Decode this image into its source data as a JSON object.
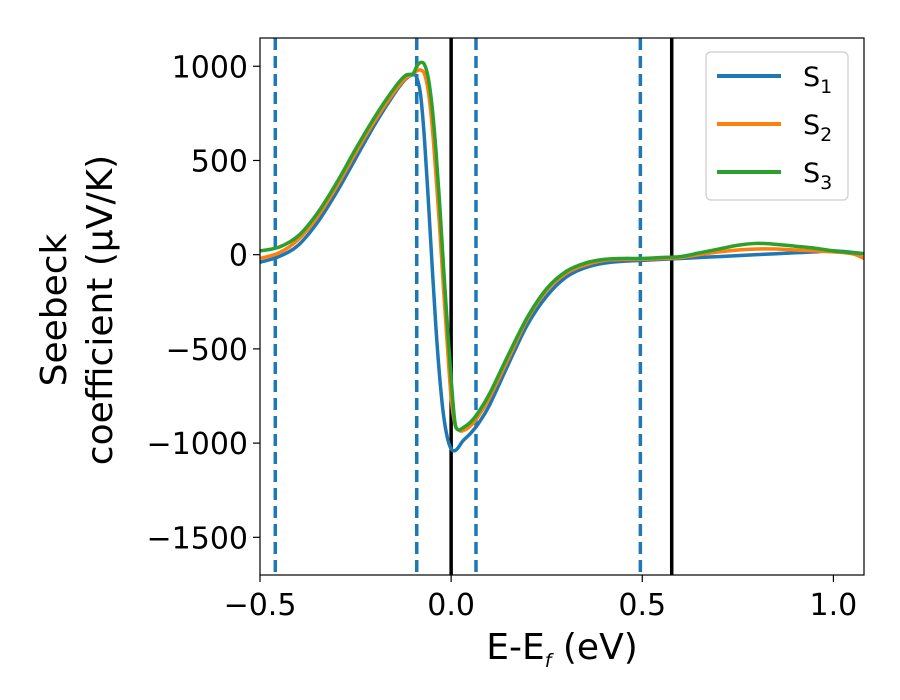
{
  "chart_data": {
    "type": "line",
    "xlabel_prefix": "E-E",
    "xlabel_sub": "f",
    "xlabel_suffix": " (eV)",
    "ylabel_line1": "Seebeck",
    "ylabel_line2": "coefficient  (μV/K)",
    "xlim": [
      -0.5,
      1.08
    ],
    "ylim": [
      -1700,
      1150
    ],
    "xticks": [
      -0.5,
      0.0,
      0.5,
      1.0
    ],
    "xtick_labels": [
      "−0.5",
      "0.0",
      "0.5",
      "1.0"
    ],
    "yticks": [
      1000,
      500,
      0,
      -500,
      -1000,
      -1500
    ],
    "ytick_labels": [
      "1000",
      "500",
      "0",
      "−500",
      "−1000",
      "−1500"
    ],
    "grid": false,
    "legend_position": "top-right",
    "vlines_dashed": {
      "color": "#1f77b4",
      "x": [
        -0.46,
        -0.09,
        0.065,
        0.495
      ]
    },
    "vlines_solid": {
      "color": "#000000",
      "x": [
        0.0,
        0.577
      ]
    },
    "series": [
      {
        "name": "S",
        "name_sub": "1",
        "color": "#1f77b4",
        "x": [
          -0.5,
          -0.45,
          -0.4,
          -0.35,
          -0.3,
          -0.25,
          -0.2,
          -0.15,
          -0.12,
          -0.1,
          -0.09,
          -0.08,
          -0.07,
          -0.06,
          -0.05,
          -0.04,
          -0.03,
          -0.02,
          -0.01,
          0.0,
          0.01,
          0.02,
          0.03,
          0.05,
          0.07,
          0.1,
          0.15,
          0.2,
          0.25,
          0.3,
          0.35,
          0.4,
          0.45,
          0.5,
          0.55,
          0.6,
          0.65,
          0.7,
          0.75,
          0.8,
          0.85,
          0.9,
          0.95,
          1.0,
          1.05,
          1.08
        ],
        "y": [
          -40,
          -10,
          50,
          170,
          330,
          510,
          690,
          850,
          930,
          955,
          940,
          850,
          620,
          300,
          -50,
          -380,
          -650,
          -850,
          -970,
          -1030,
          -1040,
          -1020,
          -990,
          -950,
          -900,
          -800,
          -580,
          -370,
          -220,
          -120,
          -70,
          -45,
          -35,
          -30,
          -25,
          -20,
          -15,
          -10,
          -5,
          0,
          5,
          10,
          15,
          20,
          12,
          5
        ]
      },
      {
        "name": "S",
        "name_sub": "2",
        "color": "#ff7f0e",
        "x": [
          -0.5,
          -0.45,
          -0.4,
          -0.35,
          -0.3,
          -0.25,
          -0.2,
          -0.15,
          -0.12,
          -0.1,
          -0.09,
          -0.08,
          -0.07,
          -0.06,
          -0.05,
          -0.04,
          -0.03,
          -0.02,
          -0.01,
          0.0,
          0.01,
          0.02,
          0.03,
          0.05,
          0.07,
          0.1,
          0.15,
          0.2,
          0.25,
          0.3,
          0.35,
          0.4,
          0.45,
          0.5,
          0.55,
          0.6,
          0.65,
          0.7,
          0.75,
          0.8,
          0.85,
          0.9,
          0.95,
          1.0,
          1.05,
          1.08
        ],
        "y": [
          -20,
          10,
          80,
          200,
          360,
          540,
          710,
          860,
          935,
          960,
          975,
          980,
          960,
          870,
          690,
          430,
          140,
          -180,
          -480,
          -760,
          -900,
          -930,
          -935,
          -910,
          -860,
          -760,
          -550,
          -340,
          -190,
          -100,
          -55,
          -30,
          -25,
          -25,
          -20,
          -15,
          0,
          15,
          25,
          30,
          30,
          25,
          20,
          15,
          5,
          -20
        ]
      },
      {
        "name": "S",
        "name_sub": "3",
        "color": "#2ca02c",
        "x": [
          -0.5,
          -0.45,
          -0.4,
          -0.35,
          -0.3,
          -0.25,
          -0.2,
          -0.15,
          -0.12,
          -0.1,
          -0.09,
          -0.08,
          -0.07,
          -0.06,
          -0.05,
          -0.04,
          -0.03,
          -0.02,
          -0.01,
          0.0,
          0.01,
          0.02,
          0.03,
          0.05,
          0.07,
          0.1,
          0.15,
          0.2,
          0.25,
          0.3,
          0.35,
          0.4,
          0.45,
          0.5,
          0.55,
          0.6,
          0.65,
          0.7,
          0.75,
          0.8,
          0.85,
          0.9,
          0.95,
          1.0,
          1.05,
          1.08
        ],
        "y": [
          20,
          40,
          100,
          220,
          380,
          560,
          730,
          880,
          950,
          960,
          1000,
          1020,
          1010,
          940,
          790,
          560,
          270,
          -60,
          -370,
          -660,
          -890,
          -930,
          -920,
          -890,
          -840,
          -740,
          -530,
          -330,
          -180,
          -90,
          -45,
          -25,
          -20,
          -20,
          -15,
          -10,
          10,
          30,
          50,
          60,
          55,
          45,
          35,
          20,
          10,
          5
        ]
      }
    ]
  }
}
